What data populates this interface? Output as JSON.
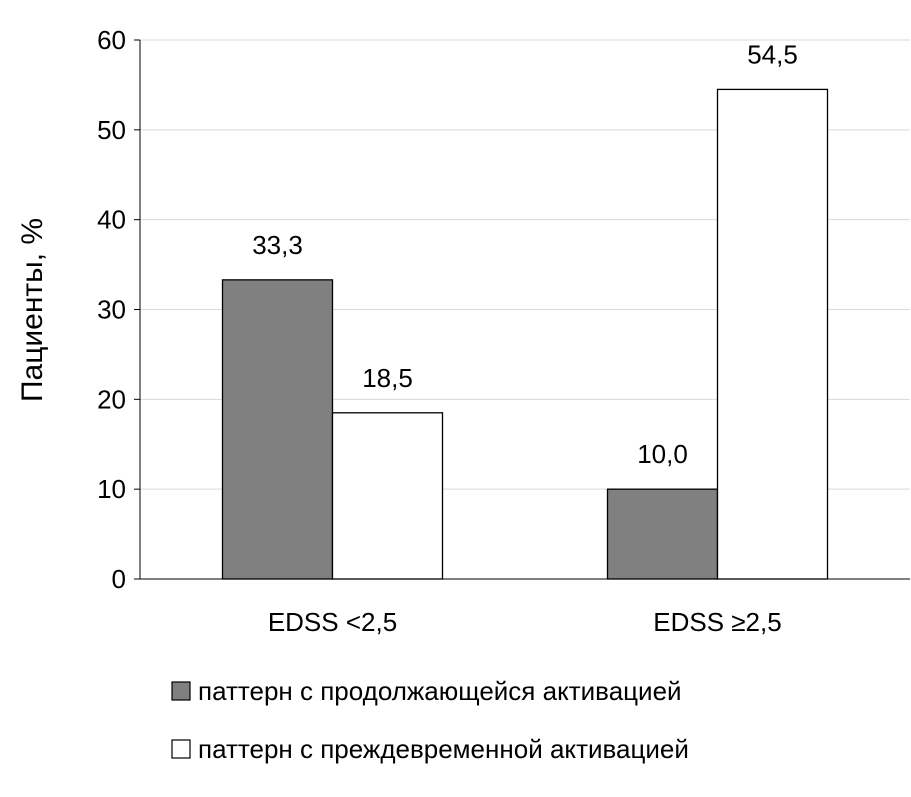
{
  "chart_data": {
    "type": "bar",
    "title": "",
    "xlabel": "",
    "ylabel": "Пациенты, %",
    "ylim": [
      0,
      60
    ],
    "yticks": [
      0,
      10,
      20,
      30,
      40,
      50,
      60
    ],
    "grid": true,
    "legend_position": "bottom",
    "categories": [
      "EDSS <2,5",
      "EDSS ≥2,5"
    ],
    "series": [
      {
        "name": "паттерн с продолжающейся активацией",
        "values": [
          33.3,
          10.0
        ],
        "labels": [
          "33,3",
          "10,0"
        ],
        "color": "#808080"
      },
      {
        "name": "паттерн с преждевременной активацией",
        "values": [
          18.5,
          54.5
        ],
        "labels": [
          "18,5",
          "54,5"
        ],
        "color": "#ffffff"
      }
    ]
  }
}
